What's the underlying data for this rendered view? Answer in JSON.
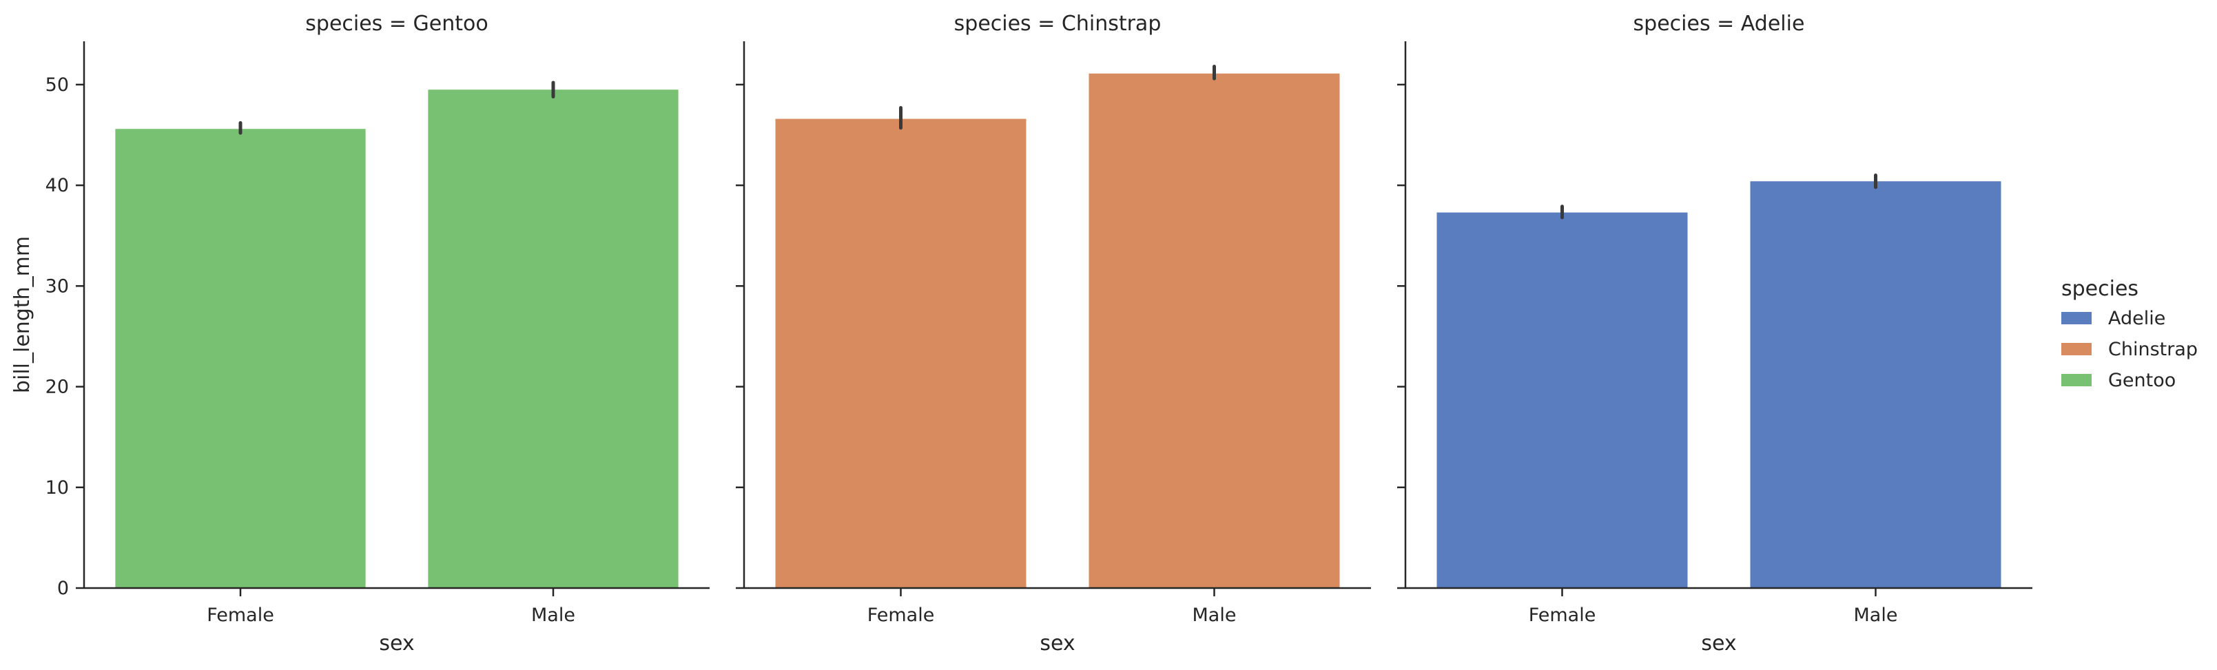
{
  "chart_data": {
    "type": "bar",
    "facet_titles": [
      "species = Gentoo",
      "species = Chinstrap",
      "species = Adelie"
    ],
    "categories": [
      "Female",
      "Male"
    ],
    "xlabel": "sex",
    "ylabel": "bill_length_mm",
    "ylim": [
      0,
      54.3
    ],
    "yticks": [
      0,
      10,
      20,
      30,
      40,
      50
    ],
    "grid": false,
    "facets": [
      {
        "species": "Gentoo",
        "color": "#78c072",
        "values": [
          45.6,
          49.5
        ],
        "error": [
          [
            45.2,
            46.2
          ],
          [
            48.8,
            50.2
          ]
        ]
      },
      {
        "species": "Chinstrap",
        "color": "#d78b5e",
        "values": [
          46.6,
          51.1
        ],
        "error": [
          [
            45.7,
            47.7
          ],
          [
            50.6,
            51.8
          ]
        ]
      },
      {
        "species": "Adelie",
        "color": "#5a7dbf",
        "values": [
          37.3,
          40.4
        ],
        "error": [
          [
            36.8,
            37.9
          ],
          [
            39.8,
            41.0
          ]
        ]
      }
    ],
    "legend": {
      "title": "species",
      "placement": "right",
      "entries": [
        {
          "label": "Adelie",
          "color": "#5a7dbf"
        },
        {
          "label": "Chinstrap",
          "color": "#d78b5e"
        },
        {
          "label": "Gentoo",
          "color": "#78c072"
        }
      ]
    }
  }
}
